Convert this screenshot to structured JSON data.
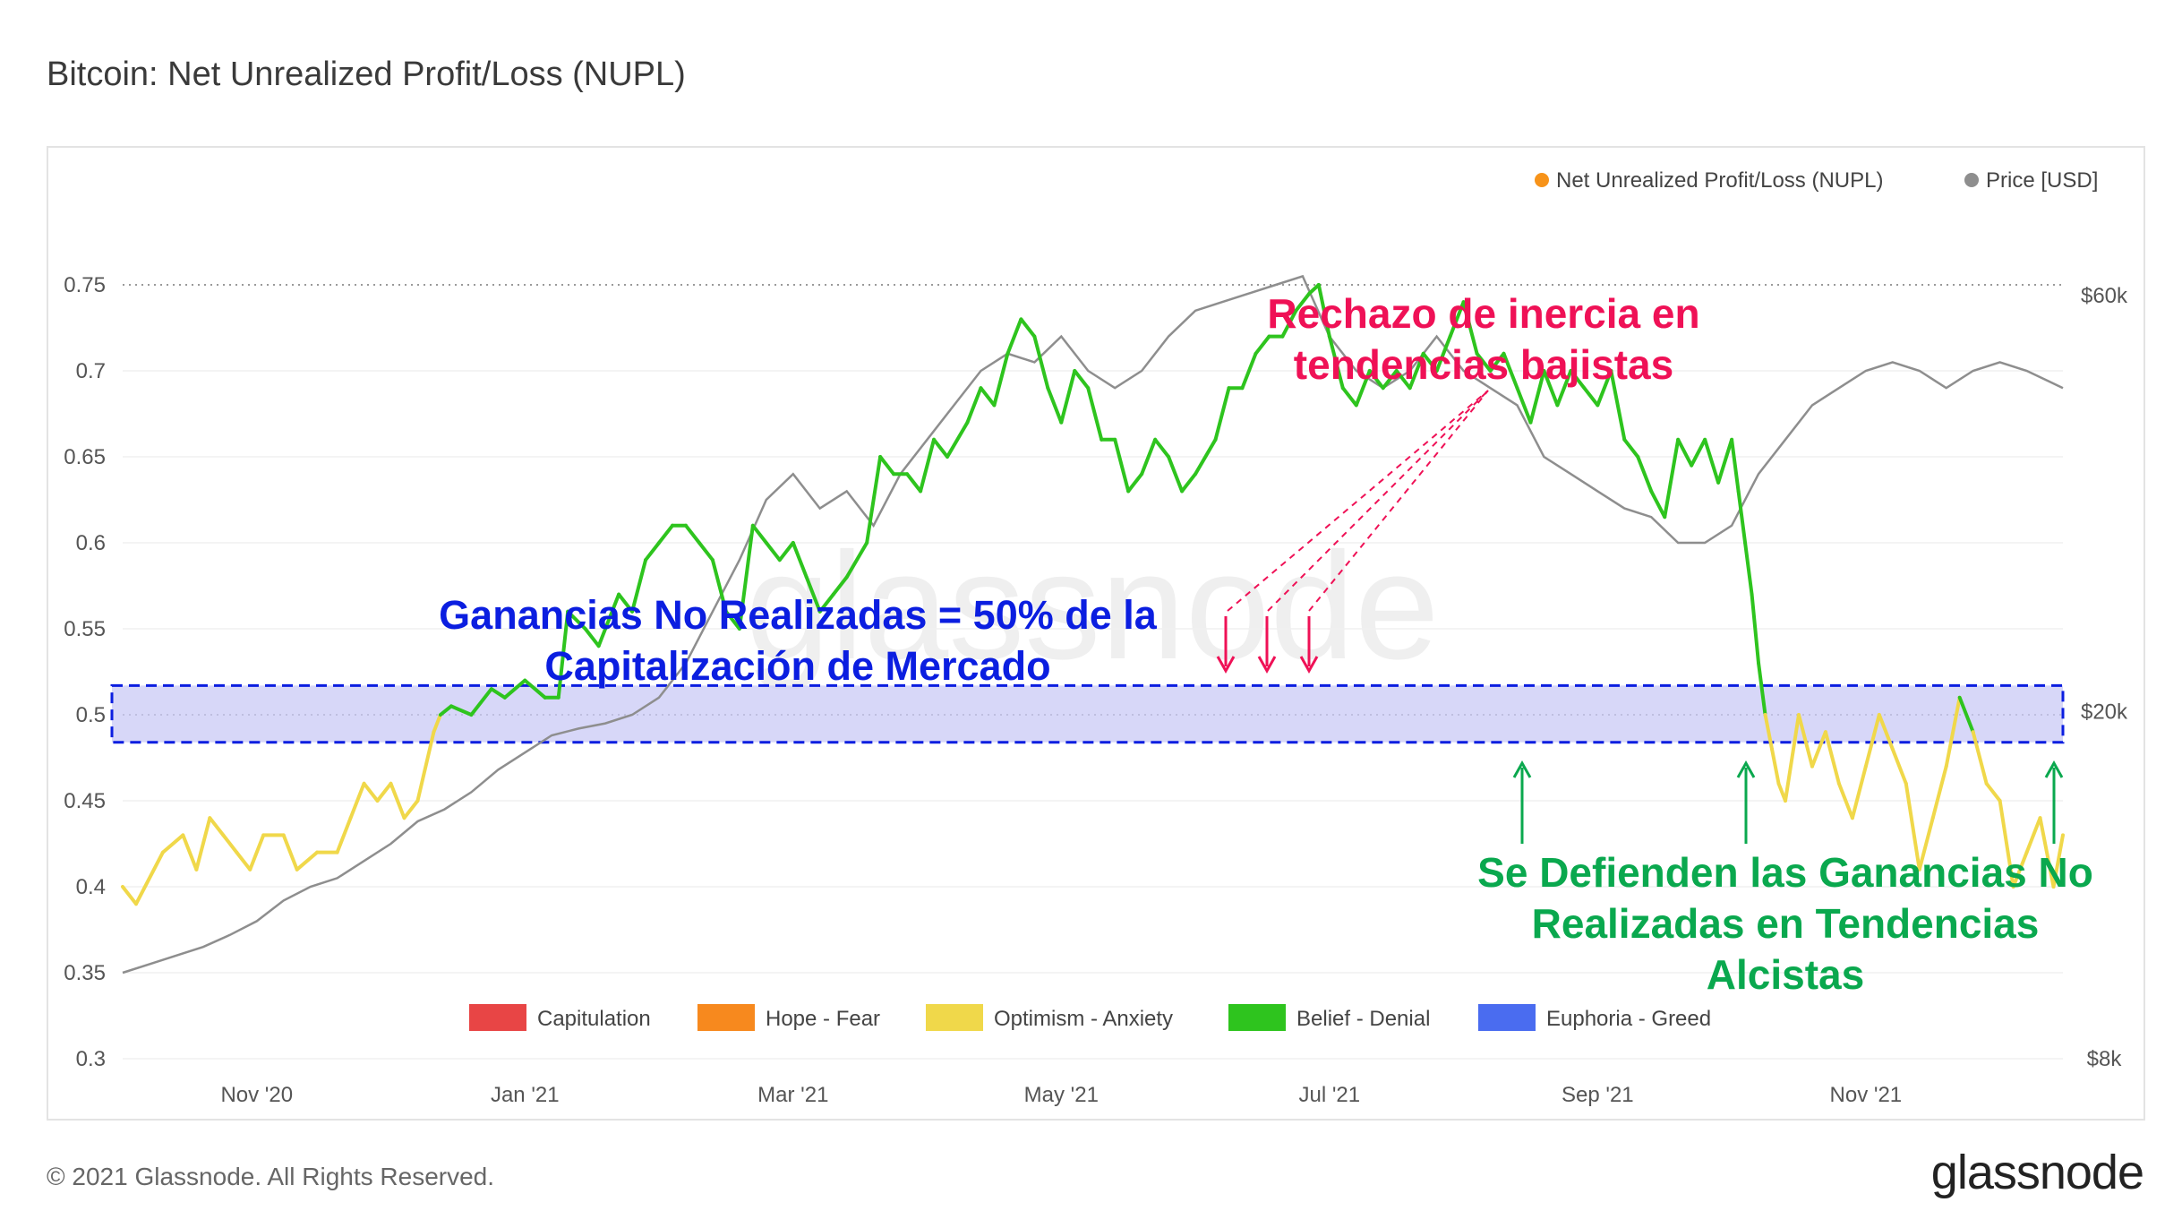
{
  "header": {
    "title": "Bitcoin: Net Unrealized Profit/Loss (NUPL)"
  },
  "footer": {
    "copyright": "© 2021 Glassnode. All Rights Reserved.",
    "logo_text": "glassnode"
  },
  "watermark": "glassnode",
  "colors": {
    "belief": "#2ec41e",
    "optimism": "#f0d84a",
    "price": "#8e8e8e",
    "band_fill": "#c9c9f5",
    "band_border": "#0b1ee0",
    "capitulation": "#e84545",
    "hope": "#f7891e",
    "euphoria": "#4a6cf0",
    "ann_red": "#ef1156",
    "ann_blue": "#0b1ee0",
    "ann_green": "#0aa84e"
  },
  "annotations": {
    "red_line1": "Rechazo de inercia en",
    "red_line2": "tendencias bajistas",
    "blue_line1": "Ganancias No Realizadas = 50% de la",
    "blue_line2": "Capitalización de Mercado",
    "green_line1": "Se Defienden las Ganancias No",
    "green_line2": "Realizadas en Tendencias",
    "green_line3": "Alcistas"
  },
  "chart_data": {
    "type": "line",
    "top_legend": [
      {
        "label": "Net Unrealized Profit/Loss (NUPL)",
        "color": "#f7931a"
      },
      {
        "label": "Price [USD]",
        "color": "#8e8e8e"
      }
    ],
    "zone_legend": [
      {
        "label": "Capitulation",
        "color": "#e84545"
      },
      {
        "label": "Hope - Fear",
        "color": "#f7891e"
      },
      {
        "label": "Optimism - Anxiety",
        "color": "#f0d84a"
      },
      {
        "label": "Belief - Denial",
        "color": "#2ec41e"
      },
      {
        "label": "Euphoria - Greed",
        "color": "#4a6cf0"
      }
    ],
    "x_ticks": [
      "Nov '20",
      "Jan '21",
      "Mar '21",
      "May '21",
      "Jul '21",
      "Sep '21",
      "Nov '21"
    ],
    "x_tick_months": [
      1,
      3,
      5,
      7,
      9,
      11,
      13
    ],
    "x_range_months": [
      0,
      14.47
    ],
    "y_ticks": [
      "0.75",
      "0.7",
      "0.65",
      "0.6",
      "0.55",
      "0.5",
      "0.45",
      "0.4",
      "0.35",
      "0.3"
    ],
    "y_tick_values": [
      0.75,
      0.7,
      0.65,
      0.6,
      0.55,
      0.5,
      0.45,
      0.4,
      0.35,
      0.3
    ],
    "ylim": [
      0.3,
      0.75
    ],
    "y2_ticks": [
      {
        "label": "$60k",
        "value": 60000
      },
      {
        "label": "$20k",
        "value": 20000
      },
      {
        "label": "$8k",
        "value": 8000
      }
    ],
    "y2_scale": "log",
    "band": [
      0.484,
      0.517
    ],
    "ref_lines": [
      0.75,
      0.5
    ],
    "nupl": {
      "name": "Net Unrealized Profit/Loss (NUPL)",
      "threshold": 0.5,
      "points": [
        [
          0.0,
          0.4
        ],
        [
          0.1,
          0.39
        ],
        [
          0.3,
          0.42
        ],
        [
          0.45,
          0.43
        ],
        [
          0.55,
          0.41
        ],
        [
          0.65,
          0.44
        ],
        [
          0.75,
          0.43
        ],
        [
          0.85,
          0.42
        ],
        [
          0.95,
          0.41
        ],
        [
          1.05,
          0.43
        ],
        [
          1.2,
          0.43
        ],
        [
          1.3,
          0.41
        ],
        [
          1.45,
          0.42
        ],
        [
          1.6,
          0.42
        ],
        [
          1.7,
          0.44
        ],
        [
          1.8,
          0.46
        ],
        [
          1.9,
          0.45
        ],
        [
          2.0,
          0.46
        ],
        [
          2.1,
          0.44
        ],
        [
          2.2,
          0.45
        ],
        [
          2.32,
          0.49
        ],
        [
          2.37,
          0.5
        ],
        [
          2.45,
          0.505
        ],
        [
          2.6,
          0.5
        ],
        [
          2.75,
          0.515
        ],
        [
          2.85,
          0.51
        ],
        [
          3.0,
          0.52
        ],
        [
          3.15,
          0.51
        ],
        [
          3.25,
          0.51
        ],
        [
          3.32,
          0.56
        ],
        [
          3.45,
          0.55
        ],
        [
          3.55,
          0.54
        ],
        [
          3.7,
          0.57
        ],
        [
          3.8,
          0.56
        ],
        [
          3.9,
          0.59
        ],
        [
          4.0,
          0.6
        ],
        [
          4.1,
          0.61
        ],
        [
          4.2,
          0.61
        ],
        [
          4.3,
          0.6
        ],
        [
          4.4,
          0.59
        ],
        [
          4.5,
          0.56
        ],
        [
          4.6,
          0.55
        ],
        [
          4.7,
          0.61
        ],
        [
          4.8,
          0.6
        ],
        [
          4.9,
          0.59
        ],
        [
          5.0,
          0.6
        ],
        [
          5.1,
          0.58
        ],
        [
          5.2,
          0.56
        ],
        [
          5.3,
          0.57
        ],
        [
          5.4,
          0.58
        ],
        [
          5.55,
          0.6
        ],
        [
          5.65,
          0.65
        ],
        [
          5.75,
          0.64
        ],
        [
          5.85,
          0.64
        ],
        [
          5.95,
          0.63
        ],
        [
          6.05,
          0.66
        ],
        [
          6.15,
          0.65
        ],
        [
          6.3,
          0.67
        ],
        [
          6.4,
          0.69
        ],
        [
          6.5,
          0.68
        ],
        [
          6.6,
          0.71
        ],
        [
          6.7,
          0.73
        ],
        [
          6.8,
          0.72
        ],
        [
          6.9,
          0.69
        ],
        [
          7.0,
          0.67
        ],
        [
          7.1,
          0.7
        ],
        [
          7.2,
          0.69
        ],
        [
          7.3,
          0.66
        ],
        [
          7.4,
          0.66
        ],
        [
          7.5,
          0.63
        ],
        [
          7.6,
          0.64
        ],
        [
          7.7,
          0.66
        ],
        [
          7.8,
          0.65
        ],
        [
          7.9,
          0.63
        ],
        [
          8.0,
          0.64
        ],
        [
          8.15,
          0.66
        ],
        [
          8.25,
          0.69
        ],
        [
          8.35,
          0.69
        ],
        [
          8.45,
          0.71
        ],
        [
          8.55,
          0.72
        ],
        [
          8.65,
          0.72
        ],
        [
          8.75,
          0.735
        ],
        [
          8.85,
          0.745
        ],
        [
          8.92,
          0.75
        ],
        [
          9.0,
          0.72
        ],
        [
          9.1,
          0.69
        ],
        [
          9.2,
          0.68
        ],
        [
          9.3,
          0.7
        ],
        [
          9.4,
          0.69
        ],
        [
          9.5,
          0.7
        ],
        [
          9.6,
          0.69
        ],
        [
          9.7,
          0.71
        ],
        [
          9.8,
          0.7
        ],
        [
          9.9,
          0.72
        ],
        [
          10.0,
          0.74
        ],
        [
          10.1,
          0.71
        ],
        [
          10.2,
          0.7
        ],
        [
          10.3,
          0.71
        ],
        [
          10.4,
          0.69
        ],
        [
          10.5,
          0.67
        ],
        [
          10.6,
          0.7
        ],
        [
          10.7,
          0.68
        ],
        [
          10.8,
          0.7
        ],
        [
          10.9,
          0.69
        ],
        [
          11.0,
          0.68
        ],
        [
          11.1,
          0.7
        ],
        [
          11.2,
          0.66
        ],
        [
          11.3,
          0.65
        ],
        [
          11.4,
          0.63
        ],
        [
          11.5,
          0.615
        ],
        [
          11.6,
          0.66
        ],
        [
          11.7,
          0.645
        ],
        [
          11.8,
          0.66
        ],
        [
          11.9,
          0.635
        ],
        [
          12.0,
          0.66
        ],
        [
          12.05,
          0.63
        ],
        [
          12.1,
          0.6
        ],
        [
          12.15,
          0.57
        ],
        [
          12.2,
          0.53
        ],
        [
          12.25,
          0.5
        ],
        [
          12.3,
          0.48
        ],
        [
          12.35,
          0.46
        ],
        [
          12.4,
          0.45
        ],
        [
          12.5,
          0.5
        ],
        [
          12.6,
          0.47
        ],
        [
          12.7,
          0.49
        ],
        [
          12.8,
          0.46
        ],
        [
          12.9,
          0.44
        ],
        [
          13.0,
          0.47
        ],
        [
          13.1,
          0.5
        ],
        [
          13.2,
          0.48
        ],
        [
          13.3,
          0.46
        ],
        [
          13.4,
          0.41
        ],
        [
          13.5,
          0.44
        ],
        [
          13.6,
          0.47
        ],
        [
          13.7,
          0.51
        ],
        [
          13.8,
          0.49
        ],
        [
          13.9,
          0.46
        ],
        [
          14.0,
          0.45
        ],
        [
          14.1,
          0.4
        ],
        [
          14.2,
          0.42
        ],
        [
          14.3,
          0.44
        ],
        [
          14.4,
          0.4
        ],
        [
          14.47,
          0.43
        ]
      ]
    },
    "price": {
      "name": "Price [USD]",
      "points": [
        [
          0.0,
          0.35
        ],
        [
          0.2,
          0.355
        ],
        [
          0.4,
          0.36
        ],
        [
          0.6,
          0.365
        ],
        [
          0.8,
          0.372
        ],
        [
          1.0,
          0.38
        ],
        [
          1.2,
          0.392
        ],
        [
          1.4,
          0.4
        ],
        [
          1.6,
          0.405
        ],
        [
          1.8,
          0.415
        ],
        [
          2.0,
          0.425
        ],
        [
          2.2,
          0.438
        ],
        [
          2.4,
          0.445
        ],
        [
          2.6,
          0.455
        ],
        [
          2.8,
          0.468
        ],
        [
          3.0,
          0.478
        ],
        [
          3.2,
          0.488
        ],
        [
          3.4,
          0.492
        ],
        [
          3.6,
          0.495
        ],
        [
          3.8,
          0.5
        ],
        [
          4.0,
          0.51
        ],
        [
          4.2,
          0.53
        ],
        [
          4.4,
          0.56
        ],
        [
          4.6,
          0.59
        ],
        [
          4.8,
          0.625
        ],
        [
          5.0,
          0.64
        ],
        [
          5.2,
          0.62
        ],
        [
          5.4,
          0.63
        ],
        [
          5.6,
          0.61
        ],
        [
          5.8,
          0.64
        ],
        [
          6.0,
          0.66
        ],
        [
          6.2,
          0.68
        ],
        [
          6.4,
          0.7
        ],
        [
          6.6,
          0.71
        ],
        [
          6.8,
          0.705
        ],
        [
          7.0,
          0.72
        ],
        [
          7.2,
          0.7
        ],
        [
          7.4,
          0.69
        ],
        [
          7.6,
          0.7
        ],
        [
          7.8,
          0.72
        ],
        [
          8.0,
          0.735
        ],
        [
          8.2,
          0.74
        ],
        [
          8.4,
          0.745
        ],
        [
          8.6,
          0.75
        ],
        [
          8.8,
          0.755
        ],
        [
          9.0,
          0.72
        ],
        [
          9.2,
          0.7
        ],
        [
          9.4,
          0.69
        ],
        [
          9.6,
          0.7
        ],
        [
          9.8,
          0.72
        ],
        [
          10.0,
          0.7
        ],
        [
          10.2,
          0.69
        ],
        [
          10.4,
          0.68
        ],
        [
          10.6,
          0.65
        ],
        [
          10.8,
          0.64
        ],
        [
          11.0,
          0.63
        ],
        [
          11.2,
          0.62
        ],
        [
          11.4,
          0.615
        ],
        [
          11.6,
          0.6
        ],
        [
          11.8,
          0.6
        ],
        [
          12.0,
          0.61
        ],
        [
          12.2,
          0.64
        ],
        [
          12.4,
          0.66
        ],
        [
          12.6,
          0.68
        ],
        [
          12.8,
          0.69
        ],
        [
          13.0,
          0.7
        ],
        [
          13.2,
          0.705
        ],
        [
          13.4,
          0.7
        ],
        [
          13.6,
          0.69
        ],
        [
          13.8,
          0.7
        ],
        [
          14.0,
          0.705
        ],
        [
          14.2,
          0.7
        ],
        [
          14.47,
          0.69
        ]
      ]
    }
  }
}
